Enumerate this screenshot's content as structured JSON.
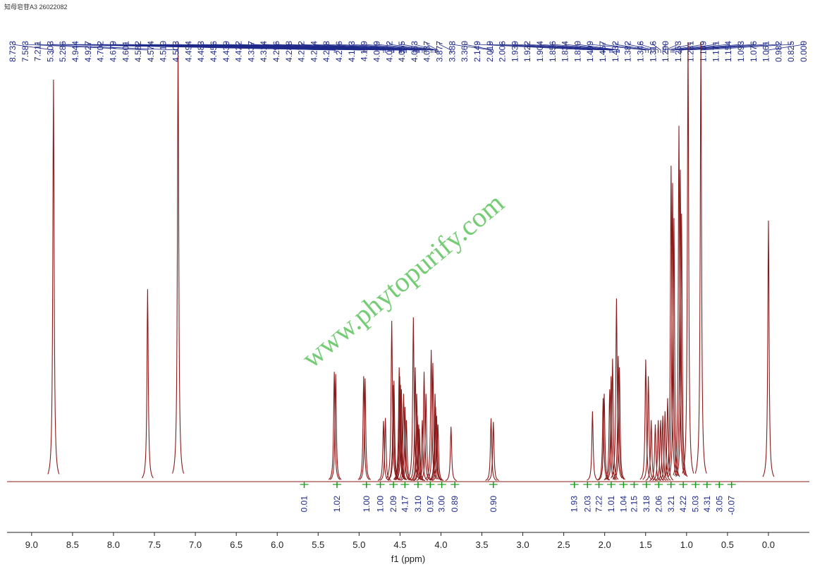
{
  "chart_data": {
    "type": "nmr",
    "title": "知母皂苷A3 26022082",
    "watermark": "www.phytopurify.com",
    "xlabel": "f1 (ppm)",
    "xlim": [
      9.3,
      -0.5
    ],
    "xticks": [
      {
        "value": 9,
        "label": "9.0"
      },
      8.5,
      {
        "value": 8,
        "label": "8.0"
      },
      7.5,
      {
        "value": 7,
        "label": "7.0"
      },
      6.5,
      {
        "value": 6,
        "label": "6.0"
      },
      5.5,
      {
        "value": 5,
        "label": "5.0"
      },
      4.5,
      {
        "value": 4,
        "label": "4.0"
      },
      3.5,
      {
        "value": 3,
        "label": "3.0"
      },
      2.5,
      {
        "value": 2,
        "label": "2.0"
      },
      1.5,
      {
        "value": 1,
        "label": "1.0"
      },
      0.5,
      {
        "value": 0,
        "label": "0.0"
      }
    ],
    "color": "#8b1a1a",
    "label_color": "#1f2a8a",
    "peaks": {
      "positions": [
        8.733,
        7.583,
        7.211,
        5.303,
        5.286,
        4.944,
        4.927,
        4.702,
        4.679,
        4.601,
        4.582,
        4.574,
        {
          "value": 4.51,
          "label": "4.510"
        },
        4.503,
        4.494,
        4.483,
        4.456,
        4.439,
        4.422,
        4.337,
        4.314,
        4.296,
        4.288,
        4.272,
        4.264,
        4.228,
        4.206,
        4.183,
        4.119,
        4.099,
        4.072,
        4.065,
        4.053,
        4.037,
        3.877,
        3.388,
        {
          "value": 3.36,
          "label": "3.360"
        },
        2.149,
        2.019,
        2.006,
        1.939,
        1.922,
        1.904,
        1.856,
        1.834,
        {
          "value": 1.82,
          "label": "1.820"
        },
        1.499,
        1.467,
        1.432,
        1.382,
        1.346,
        1.316,
        {
          "value": 1.29,
          "label": "1.290"
        },
        1.263,
        1.231,
        1.189,
        1.171,
        1.154,
        1.093,
        1.076,
        1.061,
        0.982,
        0.825,
        {
          "value": 0,
          "label": "0.000"
        }
      ],
      "heights": [
        91.5,
        43.8,
        100,
        25,
        24.5,
        24,
        23.5,
        13.8,
        14.5,
        36.6,
        22,
        23,
        26,
        24,
        22,
        21,
        20,
        17,
        14,
        37.4,
        26,
        20,
        15,
        13,
        12,
        14,
        25,
        20,
        30,
        27,
        20,
        17,
        15,
        13,
        12.5,
        14.4,
        13.6,
        16,
        19,
        20,
        21,
        24,
        28,
        41.7,
        28.6,
        26,
        27.8,
        24,
        14,
        13,
        14,
        14,
        15,
        16,
        19,
        71.9,
        68,
        60,
        81,
        71,
        61,
        100,
        100,
        59.4
      ]
    },
    "integrals": {
      "color": "#1a9a1a",
      "ppm": [
        5.67,
        5.27,
        4.91,
        4.74,
        4.58,
        4.44,
        4.28,
        4.13,
        3.99,
        3.83,
        3.36,
        2.37,
        2.21,
        2.07,
        1.92,
        1.77,
        1.64,
        1.49,
        1.34,
        1.19,
        1.04,
        0.89,
        0.75,
        0.6,
        0.45
      ],
      "values": [
        0.01,
        1.02,
        1,
        1,
        2.09,
        4.17,
        3.1,
        0.97,
        3,
        0.89,
        0.9,
        1.93,
        2.03,
        7.22,
        1.01,
        1.04,
        2.15,
        3.18,
        2.06,
        3.21,
        4.22,
        5.03,
        4.31,
        3.05,
        -0.07
      ],
      "value_labels": [
        "0.01",
        "1.02",
        "1.00",
        "1.00",
        "2.09",
        "4.17",
        "3.10",
        "0.97",
        "3.00",
        "0.89",
        "0.90",
        "1.93",
        "2.03",
        "7.22",
        "1.01",
        "1.04",
        "2.15",
        "3.18",
        "2.06",
        "3.21",
        "4.22",
        "5.03",
        "4.31",
        "3.05",
        "-0.07"
      ]
    }
  }
}
